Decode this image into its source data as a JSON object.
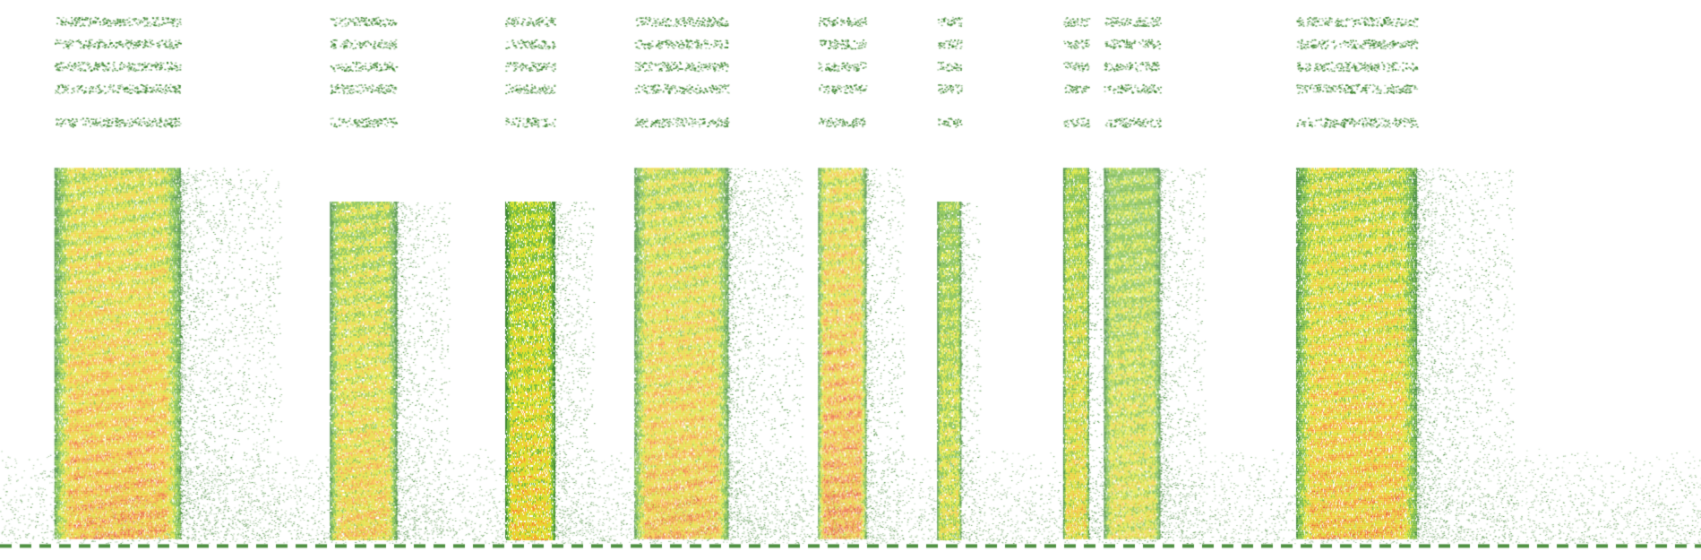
{
  "chart_data": {
    "type": "heatmap",
    "title": "",
    "xlabel": "",
    "ylabel": "",
    "grid": false,
    "legend": "none",
    "colormap": [
      "#ffffff",
      "#2e7d1f",
      "#6bb52a",
      "#d6e21b",
      "#f2c21a",
      "#f07f1a",
      "#e23a1a"
    ],
    "x_range": [
      0,
      1
    ],
    "y_range": [
      0,
      1
    ],
    "series": [
      {
        "x_start": 0.032,
        "x_end": 0.106,
        "onset": 0.3,
        "intensity": 0.82
      },
      {
        "x_start": 0.194,
        "x_end": 0.233,
        "onset": 0.36,
        "intensity": 0.7
      },
      {
        "x_start": 0.297,
        "x_end": 0.326,
        "onset": 0.36,
        "intensity": 0.66
      },
      {
        "x_start": 0.373,
        "x_end": 0.428,
        "onset": 0.3,
        "intensity": 0.78
      },
      {
        "x_start": 0.481,
        "x_end": 0.509,
        "onset": 0.3,
        "intensity": 0.9
      },
      {
        "x_start": 0.551,
        "x_end": 0.565,
        "onset": 0.36,
        "intensity": 0.55
      },
      {
        "x_start": 0.625,
        "x_end": 0.64,
        "onset": 0.3,
        "intensity": 0.62
      },
      {
        "x_start": 0.649,
        "x_end": 0.682,
        "onset": 0.3,
        "intensity": 0.58
      },
      {
        "x_start": 0.762,
        "x_end": 0.833,
        "onset": 0.3,
        "intensity": 0.76
      }
    ],
    "noise_floor_band": [
      0.8,
      0.97
    ],
    "baseline_level": 0.975
  }
}
